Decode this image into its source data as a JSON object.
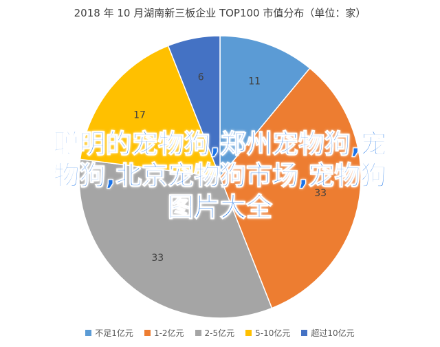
{
  "chart_data": {
    "type": "pie",
    "title": "2018 年 10 月湖南新三板企业 TOP100 市值分布（单位：家）",
    "series": [
      {
        "name": "不足1亿元",
        "value": 11,
        "color": "#5b9bd5"
      },
      {
        "name": "1-2亿元",
        "value": 33,
        "color": "#ed7d31"
      },
      {
        "name": "2-5亿元",
        "value": 33,
        "color": "#a5a5a5"
      },
      {
        "name": "5-10亿元",
        "value": 17,
        "color": "#ffc000"
      },
      {
        "name": "超过10亿元",
        "value": 6,
        "color": "#4472c4"
      }
    ],
    "legend_position": "bottom"
  },
  "overlay_text": {
    "line1": "聪明的宠物狗,郑州宠物狗,宠",
    "line2": "物狗,北京宠物狗市场,宠物狗",
    "line3": "图片大全"
  }
}
